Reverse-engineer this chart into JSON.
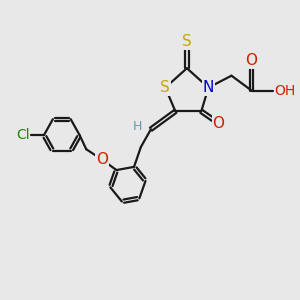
{
  "bg_color": "#e8e8e8",
  "bond_color": "#1a1a1a",
  "atom_colors": {
    "S": "#c8a800",
    "N": "#0000cc",
    "O": "#cc2200",
    "Cl": "#228800",
    "H": "#6699aa",
    "C": "#1a1a1a"
  },
  "lw": 1.6,
  "fs": 10
}
